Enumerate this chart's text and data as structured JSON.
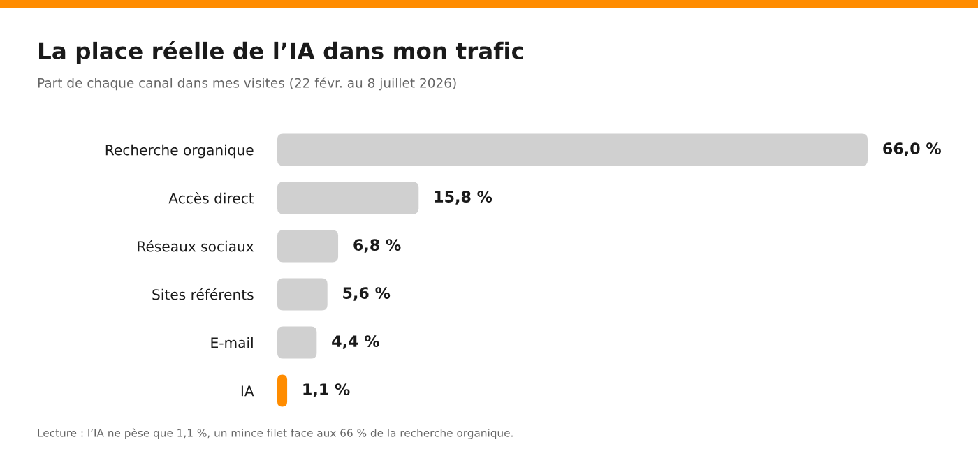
{
  "chart_data": {
    "type": "bar",
    "orientation": "horizontal",
    "title": "La place réelle de l’IA dans mon trafic",
    "subtitle": "Part de chaque canal dans mes visites (22 févr. au 8 juillet 2026)",
    "categories": [
      "Recherche organique",
      "Accès direct",
      "Réseaux sociaux",
      "Sites référents",
      "E-mail",
      "IA"
    ],
    "values": [
      66.0,
      15.8,
      6.8,
      5.6,
      4.4,
      1.1
    ],
    "colors": [
      "#d0d0d0",
      "#d0d0d0",
      "#d0d0d0",
      "#d0d0d0",
      "#d0d0d0",
      "#ff8c00"
    ],
    "value_labels": [
      "66,0 %",
      "15,8 %",
      "6,8 %",
      "5,6 %",
      "4,4 %",
      "1,1 %"
    ],
    "annotations": [
      "Lecture : l’IA ne pèse que 1,1 %, un mince filet face aux 66 % de la recherche organique."
    ],
    "tick_labels": "y"
  }
}
